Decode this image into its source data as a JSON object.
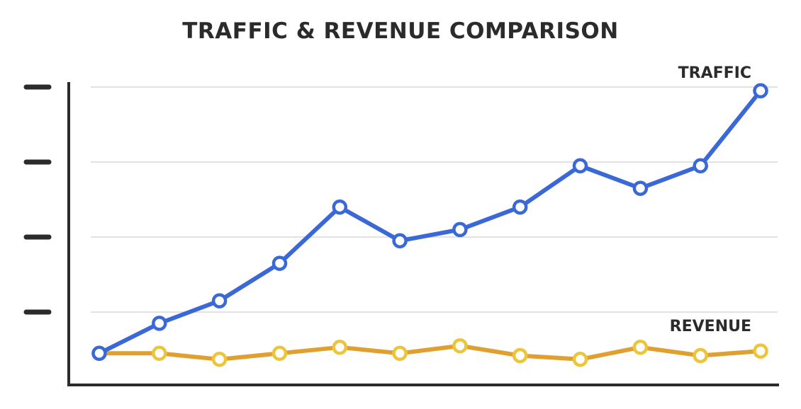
{
  "chart_data": {
    "type": "line",
    "title": "TRAFFIC & REVENUE COMPARISON",
    "xlabel": "",
    "ylabel": "",
    "x": [
      1,
      2,
      3,
      4,
      5,
      6,
      7,
      8,
      9,
      10,
      11,
      12
    ],
    "ylim": [
      0,
      4
    ],
    "yticks": [
      1,
      2,
      3,
      4
    ],
    "ytick_labels_shown": false,
    "grid": true,
    "series": [
      {
        "name": "TRAFFIC",
        "color": "#3a68d6",
        "marker_fill": "#ffffff",
        "values": [
          0.45,
          0.85,
          1.15,
          1.65,
          2.4,
          1.95,
          2.1,
          2.4,
          2.95,
          2.65,
          2.95,
          3.95
        ]
      },
      {
        "name": "REVENUE",
        "color": "#e0a030",
        "marker_fill": "#ffffff",
        "marker_stroke": "#ecc53a",
        "values": [
          0.45,
          0.45,
          0.37,
          0.45,
          0.53,
          0.45,
          0.55,
          0.42,
          0.37,
          0.53,
          0.42,
          0.48
        ]
      }
    ]
  }
}
